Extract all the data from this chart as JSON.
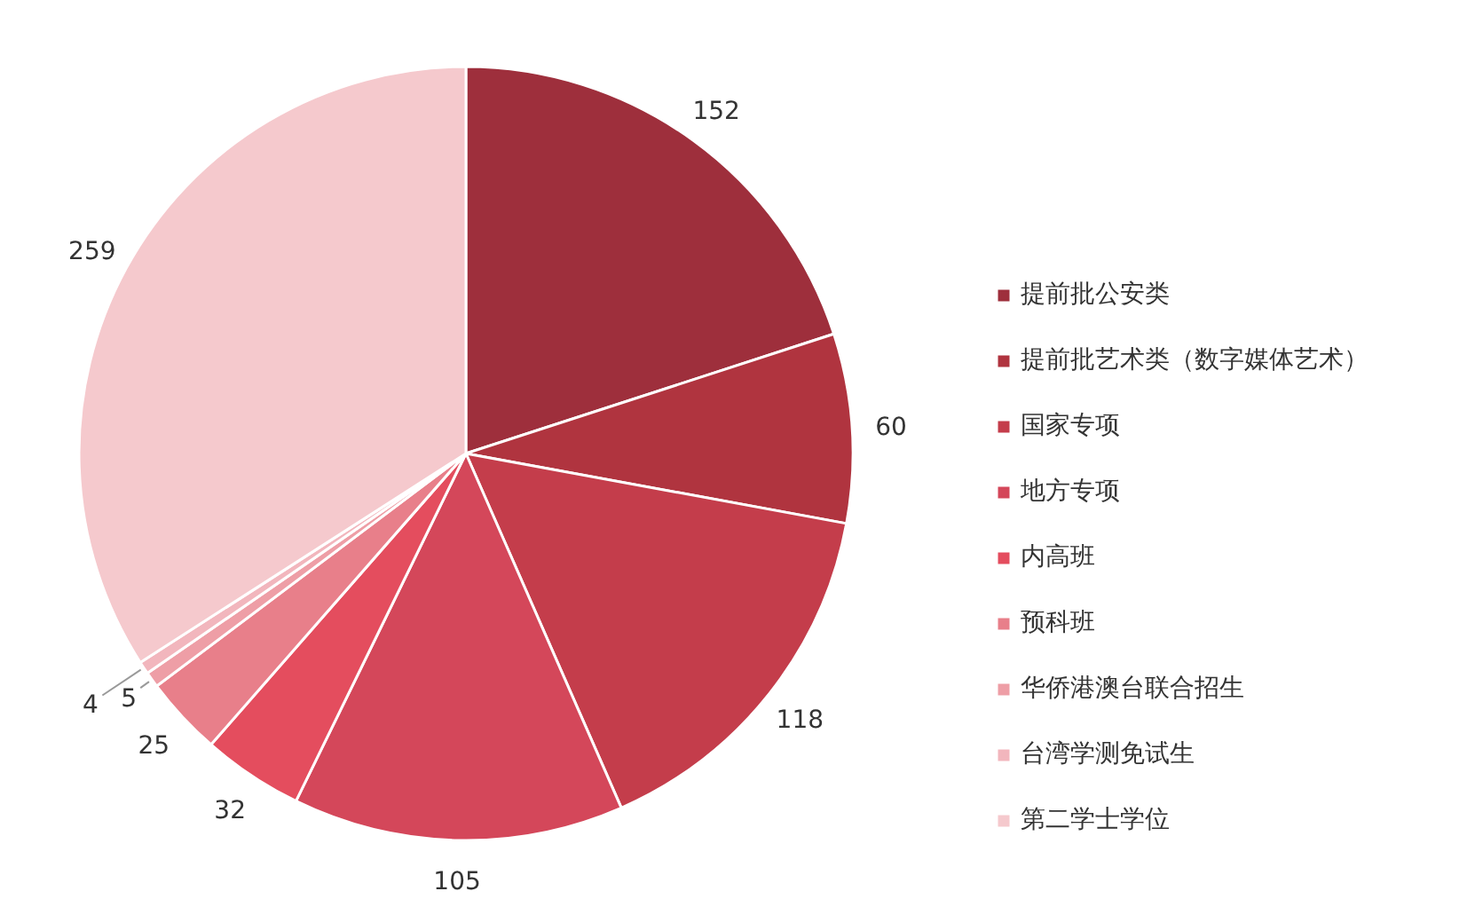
{
  "chart_data": {
    "type": "pie",
    "categories": [
      "提前批公安类",
      "提前批艺术类（数字媒体艺术）",
      "国家专项",
      "地方专项",
      "内高班",
      "预科班",
      "华侨港澳台联合招生",
      "台湾学测免试生",
      "第二学士学位"
    ],
    "values": [
      152,
      60,
      118,
      105,
      32,
      25,
      5,
      4,
      259
    ],
    "colors": [
      "#9e2f3c",
      "#b0343f",
      "#c43d4b",
      "#d4475a",
      "#e44d5e",
      "#e87f8a",
      "#ee9ea6",
      "#f2b6bd",
      "#f5c9cd"
    ],
    "data_labels": true,
    "legend": "right"
  }
}
